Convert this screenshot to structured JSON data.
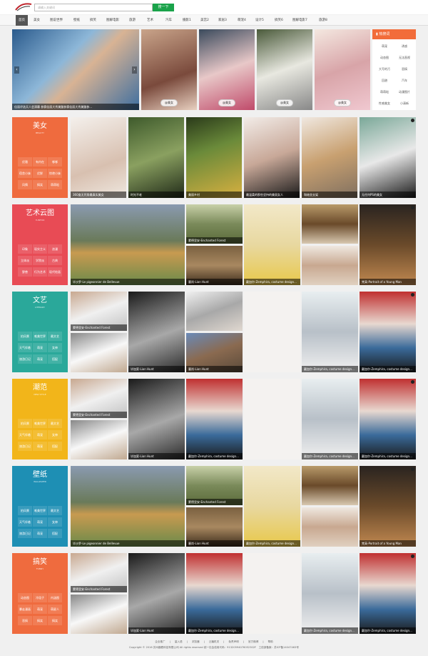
{
  "search": {
    "placeholder": "请输入关键词",
    "button": "搜一下"
  },
  "nav": [
    "首页",
    "美女",
    "图说世界",
    "壁纸",
    "搞笑",
    "图解电影",
    "旅游",
    "艺术",
    "汽车",
    "摄影1",
    "美宫2",
    "家居3",
    "萌宠4",
    "设计5",
    "搞笑6",
    "图解电影7",
    "旅游8"
  ],
  "hero": {
    "slide_caption": "佳丽评选天人会演幕 参赛佳丽大秀美腿参赛佳丽大秀美腿参...",
    "pills": [
      "@美女",
      "@美女",
      "@美女",
      "@美女",
      "@美女"
    ]
  },
  "hot": {
    "title": "热搜词",
    "tags": [
      "萌宠",
      "诱惑",
      "动态图",
      "无法直视",
      "大写的污",
      "恶搞",
      "回避",
      "汽车",
      "萌萌哒",
      "动漫图片",
      "性感美女",
      "小清新"
    ]
  },
  "sections": [
    {
      "title": "美女",
      "sub": "BEAUTY",
      "color": "#ef6b3e",
      "tags": [
        "优雅",
        "有内在",
        "嗲嗲",
        "宿舍小妹",
        "优鲜",
        "惊艳小妹",
        "风情",
        "搞笑",
        "萌萌哒"
      ],
      "captions": [
        "360度无死角最真实美女",
        "时光不老",
        "美丽乡村",
        "最温柔的那些坚持的美丽女人",
        "和她坐支架",
        "无任何PS的美女"
      ]
    },
    {
      "title": "艺术云图",
      "sub": "YUNTOO",
      "color": "#e84b55",
      "tags": [
        "印象",
        "现实主义",
        "浪漫",
        "立体派",
        "学院派",
        "古典",
        "野兽",
        "行为艺术",
        "现代绘画"
      ],
      "captions": [
        "毕沙罗-Le pigeonnier de Bellevue",
        "蒙德里安-Enchanted Forest",
        "塞尚-Lion Hunt",
        "戴加尔-Zemphira, costume design...",
        "梵高-Portrait of a Young Man"
      ]
    },
    {
      "title": "文艺",
      "sub": "LITERARY",
      "color": "#2aa89a",
      "tags": [
        "拍风景",
        "唯美世界",
        "最文艺",
        "天气伴着",
        "萌宠",
        "女神",
        "旅游日记",
        "萌宠",
        "搭配"
      ],
      "captions": [
        "蒙德里安-Enchanted Forest",
        "毕加索-Lion Hunt",
        "毕沙罗-Le pigeonnier de Bellevue",
        "塞尚-Lion Hunt",
        "戴加尔-Zemphira, costume design...",
        "戴加尔-Zemphira, costume design..."
      ]
    },
    {
      "title": "潮范",
      "sub": "NEW STYLE",
      "color": "#f2b51a",
      "tags": [
        "拍风景",
        "唯美世界",
        "最文艺",
        "天气伴着",
        "萌宠",
        "女神",
        "旅游日记",
        "萌宠",
        "搭配"
      ],
      "captions": [
        "蒙德里安-Enchanted Forest",
        "毕加索-Lion Hunt",
        "毕沙罗-Le pigeonnier de Bellevue",
        "戴加尔-Zemphira, costume design...",
        "戴加尔-Zemphira, costume design...",
        "戴加尔-Zemphira, costume design..."
      ]
    },
    {
      "title": "壁纸",
      "sub": "WALLPAPER",
      "color": "#1e8fb4",
      "tags": [
        "拍风景",
        "唯美世界",
        "最文艺",
        "天气伴着",
        "萌宠",
        "女神",
        "旅游日记",
        "萌宠",
        "搭配"
      ],
      "captions": [
        "毕沙罗-Le pigeonnier de Bellevue",
        "蒙德里安-Enchanted Forest",
        "塞尚-Lion Hunt",
        "戴加尔-Zemphira, costume design...",
        "梵高-Portrait of a Young Man"
      ]
    },
    {
      "title": "搞笑",
      "sub": "FUNNY",
      "color": "#ef6b3e",
      "tags": [
        "动态图",
        "冷段子",
        "内涵图",
        "暴走漫画",
        "萌宠",
        "萌星人",
        "恶搞",
        "搞笑",
        "搞笑"
      ],
      "captions": [
        "蒙德里安-Enchanted Forest",
        "毕加索-Lion Hunt",
        "毕沙罗-Le pigeonnier de Bellevue",
        "戴加尔-Zemphira, costume design...",
        "戴加尔-Zemphira, costume design...",
        "戴加尔-Zemphira, costume design..."
      ]
    }
  ],
  "footer": {
    "links": [
      "企业推广",
      "量入语",
      "浏览器",
      "迁播机关",
      "免责声明",
      "官方微博",
      "帮助"
    ],
    "copy": "Copyright © 2016 苏州趣看科技有限公司 All rights reserved 统一社会信用代码：91320594076052302F",
    "icp": "工信部备案：苏ICP备14047463号"
  }
}
